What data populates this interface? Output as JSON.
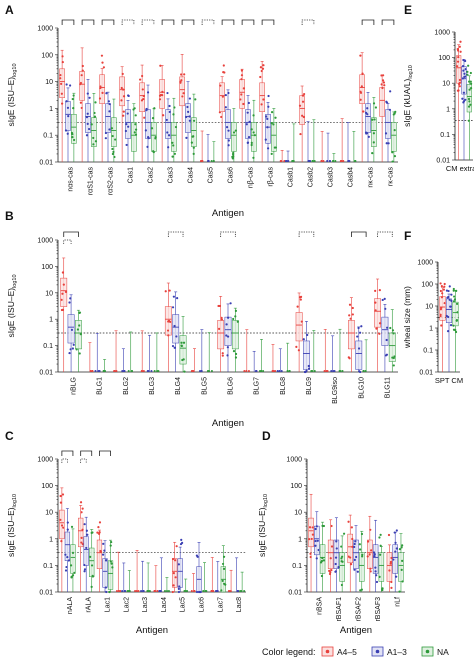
{
  "colors": {
    "A4-5": "#e8413c",
    "A1-3": "#3a3fb3",
    "NA": "#2e9a3a"
  },
  "legend": {
    "label": "Color legend:",
    "entries": [
      {
        "key": "A4-5",
        "name": "A4–5"
      },
      {
        "key": "A1-3",
        "name": "A1–3"
      },
      {
        "key": "NA",
        "name": "NA"
      }
    ]
  },
  "chart_data": [
    {
      "panel": "A",
      "type": "scatter",
      "ylabel": "sIgE (ISU–E)",
      "ylabel_sub": "log10",
      "xlabel": "Antigen",
      "yscale": "log",
      "ylim": [
        0.01,
        1000
      ],
      "threshold": 0.3,
      "yticks": [
        "0.01",
        "0.1",
        "1",
        "10",
        "100",
        "1000"
      ],
      "categories": [
        "nαs-cas",
        "rαS1-cas",
        "rαS2-cas",
        "Cas1",
        "Cas2",
        "Cas3",
        "Cas4",
        "Cas5",
        "Cas6",
        "nβ-cas",
        "rβ-cas",
        "Casb1",
        "Casb2",
        "Casb3",
        "Casb4",
        "nκ-cas",
        "rκ-cas"
      ],
      "series_medians": {
        "A4-5": [
          10,
          8,
          6,
          5,
          3,
          4,
          5,
          0.01,
          3,
          4,
          3,
          0.01,
          1,
          0.01,
          0.01,
          6,
          2
        ],
        "A1-3": [
          0.6,
          0.5,
          0.5,
          0.3,
          0.3,
          0.3,
          0.5,
          0.01,
          0.3,
          0.3,
          0.2,
          0.01,
          0.01,
          0.01,
          0.01,
          0.5,
          0.3
        ],
        "NA": [
          0.2,
          0.15,
          0.15,
          0.1,
          0.1,
          0.1,
          0.15,
          0.01,
          0.1,
          0.1,
          0.1,
          0.01,
          0.01,
          0.01,
          0.01,
          0.15,
          0.1
        ]
      },
      "brackets": [
        {
          "cat": 0,
          "style": "solid"
        },
        {
          "cat": 1,
          "style": "solid"
        },
        {
          "cat": 2,
          "style": "solid"
        },
        {
          "cat": 3,
          "style": "dotted"
        },
        {
          "cat": 4,
          "style": "dotted"
        },
        {
          "cat": 5,
          "style": "solid"
        },
        {
          "cat": 6,
          "style": "solid"
        },
        {
          "cat": 7,
          "style": "dotted"
        },
        {
          "cat": 8,
          "style": "solid"
        },
        {
          "cat": 9,
          "style": "solid"
        },
        {
          "cat": 10,
          "style": "solid"
        },
        {
          "cat": 12,
          "style": "dotted"
        },
        {
          "cat": 15,
          "style": "solid"
        },
        {
          "cat": 16,
          "style": "solid"
        }
      ]
    },
    {
      "panel": "B",
      "type": "scatter",
      "ylabel": "sIgE (ISU–E)",
      "ylabel_sub": "log10",
      "xlabel": "Antigen",
      "yscale": "log",
      "ylim": [
        0.01,
        1000
      ],
      "threshold": 0.3,
      "yticks": [
        "0.01",
        "0.1",
        "1",
        "10",
        "100",
        "1000"
      ],
      "categories": [
        "nBLG",
        "BLG1",
        "BLG2",
        "BLG3",
        "BLG4",
        "BLG5",
        "BLG6",
        "BLG7",
        "BLG8",
        "BLG9",
        "BLG9iso",
        "BLG10",
        "BLG11"
      ],
      "series_medians": {
        "A4-5": [
          12,
          0.01,
          0.01,
          0.01,
          1,
          0.01,
          0.3,
          0.01,
          0.01,
          0.6,
          0.01,
          0.3,
          2
        ],
        "A1-3": [
          0.5,
          0.01,
          0.01,
          0.01,
          0.5,
          0.01,
          0.4,
          0.01,
          0.01,
          0.05,
          0.01,
          0.05,
          0.4
        ],
        "NA": [
          0.3,
          0.01,
          0.01,
          0.01,
          0.08,
          0.01,
          0.3,
          0.01,
          0.01,
          0.01,
          0.01,
          0.01,
          0.1
        ]
      },
      "brackets": [
        {
          "cat": 0,
          "style": "solid",
          "inner": "dotted"
        },
        {
          "cat": 4,
          "style": "dotted"
        },
        {
          "cat": 6,
          "style": "dotted"
        },
        {
          "cat": 9,
          "style": "dotted"
        },
        {
          "cat": 11,
          "style": "solid"
        },
        {
          "cat": 12,
          "style": "dotted"
        }
      ]
    },
    {
      "panel": "C",
      "type": "scatter",
      "ylabel": "sIgE (ISU–E)",
      "ylabel_sub": "log10",
      "xlabel": "Antigen",
      "yscale": "log",
      "ylim": [
        0.01,
        1000
      ],
      "threshold": 0.3,
      "yticks": [
        "0.01",
        "0.1",
        "1",
        "10",
        "100",
        "1000"
      ],
      "categories": [
        "nALA",
        "rALA",
        "Lac1",
        "Lac2",
        "Lac3",
        "Lac4",
        "Lac5",
        "Lac6",
        "Lac7",
        "Lac8"
      ],
      "series_medians": {
        "A4-5": [
          4,
          2,
          0.3,
          0.01,
          0.01,
          0.01,
          0.06,
          0.01,
          0.01,
          0.01
        ],
        "A1-3": [
          0.6,
          0.4,
          0.06,
          0.01,
          0.01,
          0.01,
          0.06,
          0.03,
          0.01,
          0.01
        ],
        "NA": [
          0.2,
          0.15,
          0.05,
          0.01,
          0.01,
          0.01,
          0.01,
          0.01,
          0.03,
          0.01
        ]
      },
      "brackets": [
        {
          "cat": 0,
          "style": "solid",
          "inner": "dotted"
        },
        {
          "cat": 1,
          "style": "solid",
          "inner": "dotted"
        },
        {
          "cat": 2,
          "style": "solid"
        }
      ]
    },
    {
      "panel": "D",
      "type": "scatter",
      "ylabel": "sIgE (ISU–E)",
      "ylabel_sub": "log10",
      "xlabel": "Antigen",
      "yscale": "log",
      "ylim": [
        0.01,
        1000
      ],
      "threshold": 0.3,
      "yticks": [
        "0.01",
        "0.1",
        "1",
        "10",
        "100",
        "1000"
      ],
      "categories": [
        "nBSA",
        "rBSAF1",
        "rBSAF2",
        "rBSAF3",
        "nLf"
      ],
      "series_medians": {
        "A4-5": [
          2,
          0.3,
          0.5,
          0.3,
          0.1
        ],
        "A1-3": [
          1,
          0.3,
          0.3,
          0.2,
          0.2
        ],
        "NA": [
          0.2,
          0.1,
          0.1,
          0.1,
          0.1
        ]
      },
      "brackets": []
    },
    {
      "panel": "E",
      "type": "scatter",
      "ylabel": "sIgE (kUA/L)",
      "ylabel_sub": "log10",
      "yscale": "log",
      "ylim": [
        0.01,
        1000
      ],
      "threshold": 0.35,
      "yticks": [
        "0.01",
        "0.1",
        "1",
        "10",
        "100",
        "1000"
      ],
      "categories": [
        "CM extract"
      ],
      "series_medians": {
        "A4-5": [
          40
        ],
        "A1-3": [
          15
        ],
        "NA": [
          3
        ]
      },
      "brackets": []
    },
    {
      "panel": "F",
      "type": "scatter",
      "ylabel": "wheal size (mm)",
      "yscale": "log",
      "ylim": [
        0.01,
        1000
      ],
      "threshold": 3,
      "yticks": [
        "0.01",
        "0.1",
        "1",
        "10",
        "100",
        "1000"
      ],
      "categories": [
        "SPT CM"
      ],
      "series_medians": {
        "A4-5": [
          9
        ],
        "A1-3": [
          7
        ],
        "NA": [
          5
        ]
      },
      "brackets": []
    }
  ]
}
